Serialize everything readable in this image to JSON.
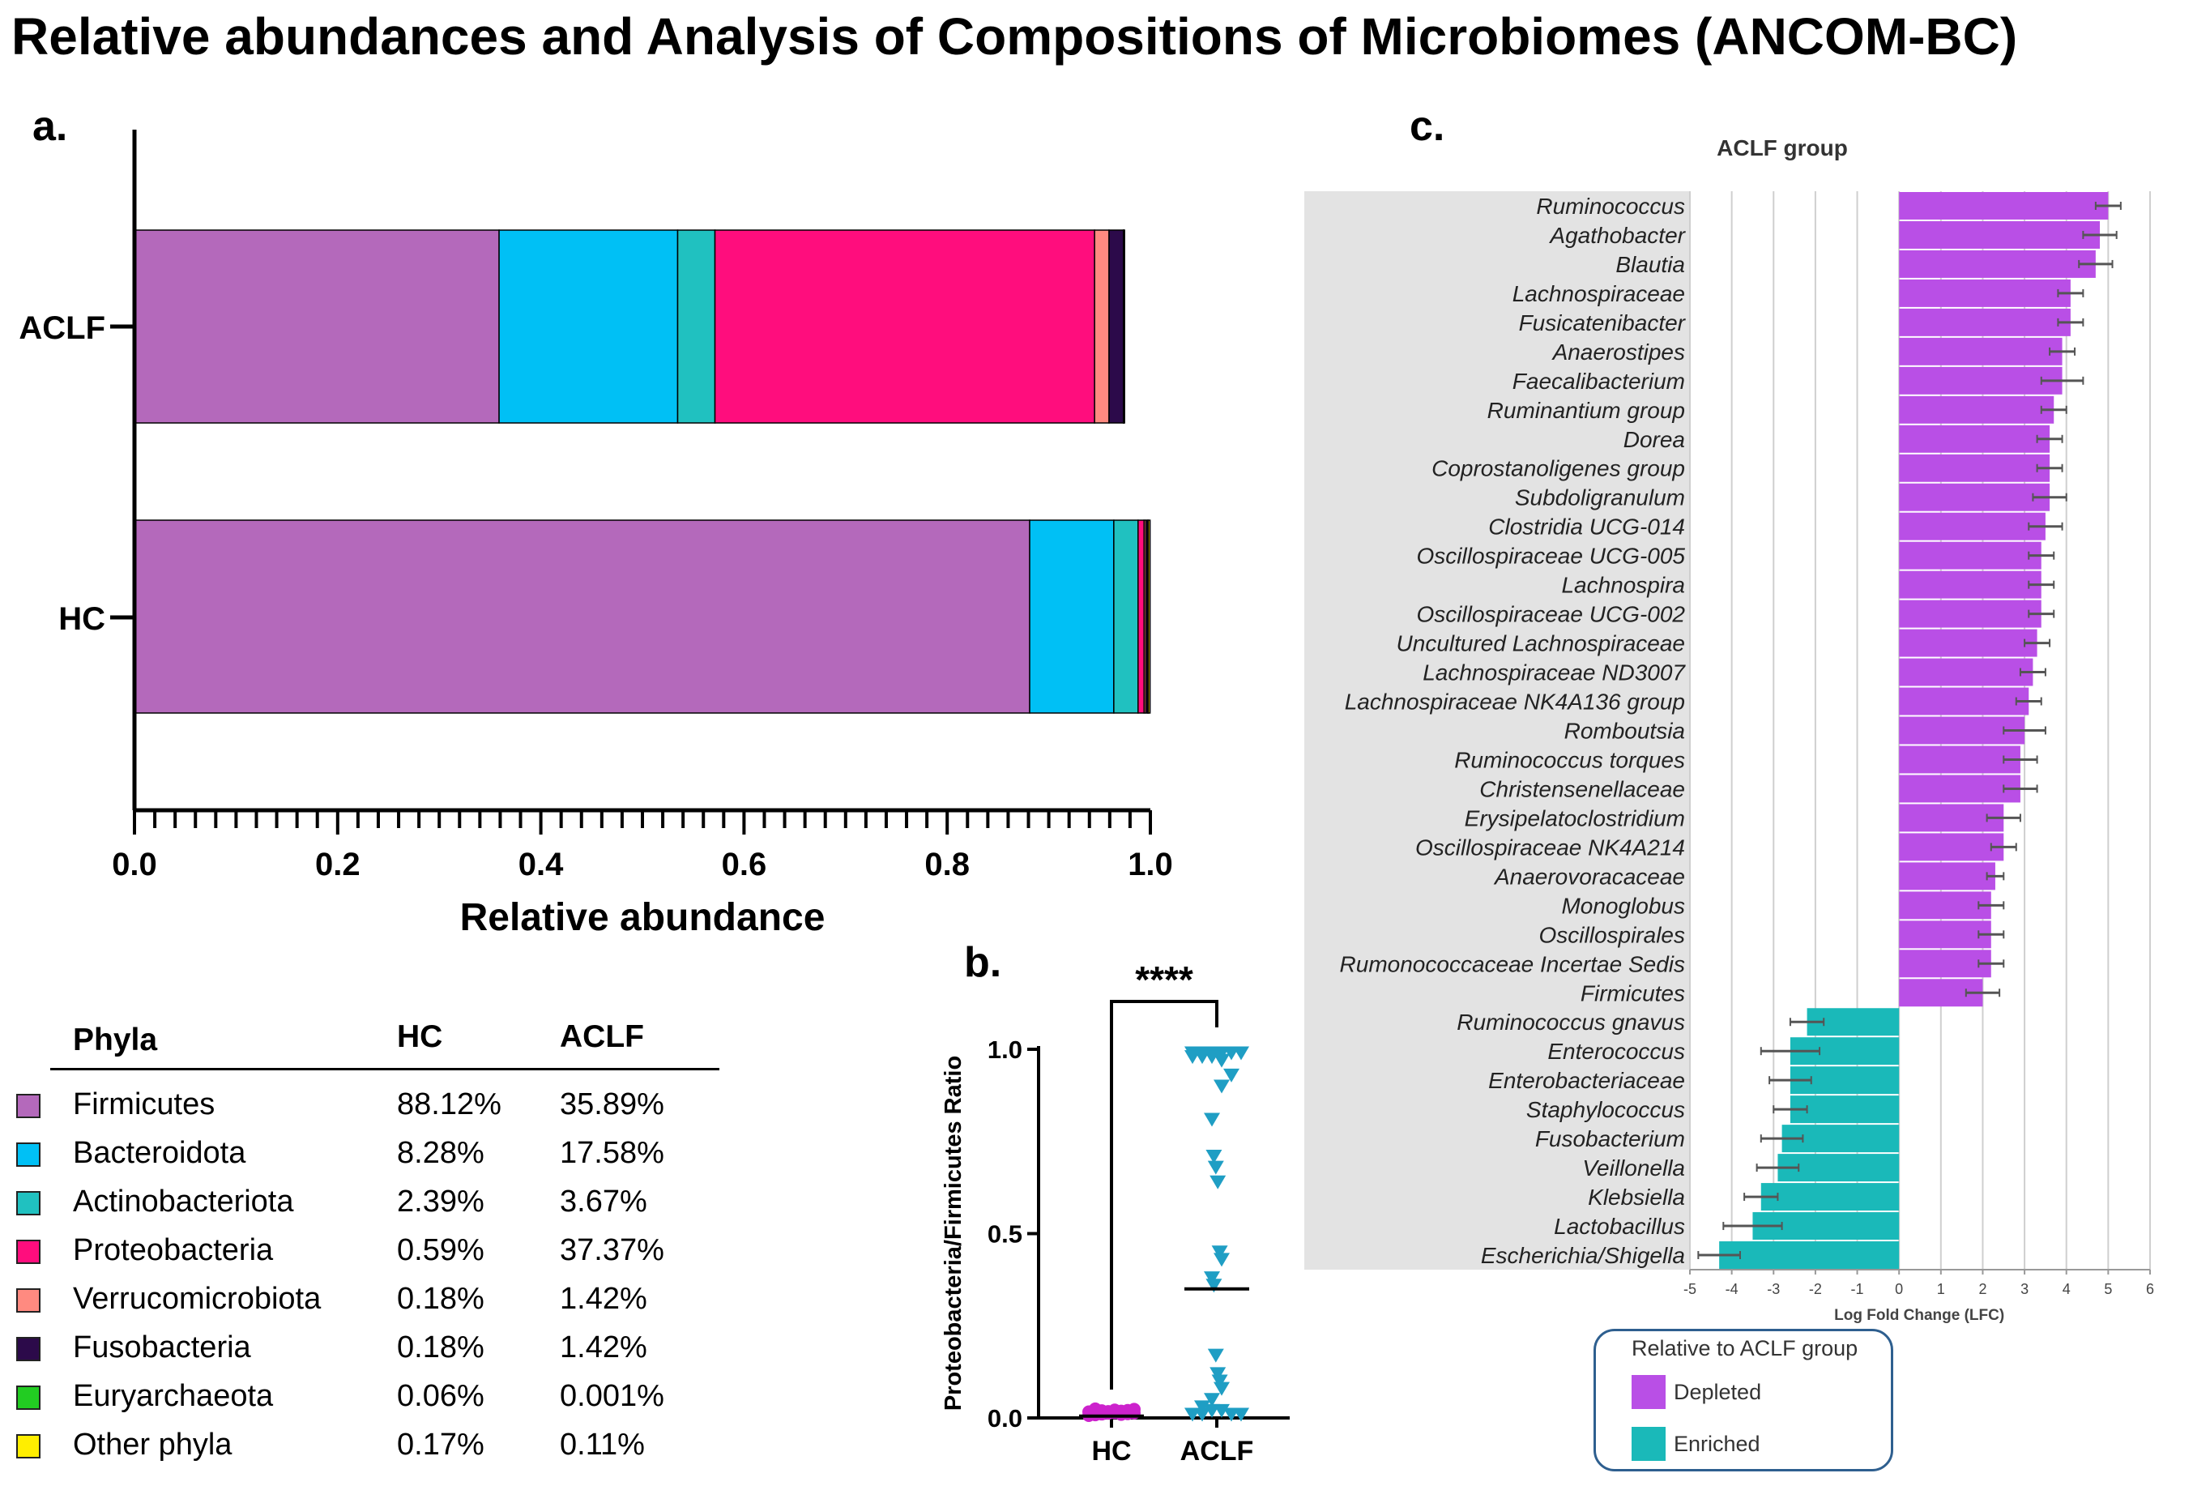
{
  "title": "Relative abundances and Analysis of Compositions of Microbiomes (ANCOM-BC)",
  "panel_labels": {
    "a": "a.",
    "b": "b.",
    "c": "c."
  },
  "colors": {
    "Firmicutes": "#b469bb",
    "Bacteroidota": "#00c0f5",
    "Actinobacteriota": "#20c1c0",
    "Proteobacteria": "#ff0d7d",
    "Verrucomicrobiota": "#ff8a80",
    "Fusobacteria": "#2c0a4a",
    "Euryarchaeota": "#22cc22",
    "Other phyla": "#ffee00",
    "depleted": "#b94fe6",
    "enriched": "#1ab9b9",
    "point_hc": "#cc22cc",
    "point_aclf": "#1f9ec4"
  },
  "legend_table": {
    "headers": [
      "Phyla",
      "HC",
      "ACLF"
    ],
    "rows": [
      {
        "name": "Firmicutes",
        "hc": "88.12%",
        "aclf": "35.89%"
      },
      {
        "name": "Bacteroidota",
        "hc": "8.28%",
        "aclf": "17.58%"
      },
      {
        "name": "Actinobacteriota",
        "hc": "2.39%",
        "aclf": "3.67%"
      },
      {
        "name": "Proteobacteria",
        "hc": "0.59%",
        "aclf": "37.37%"
      },
      {
        "name": "Verrucomicrobiota",
        "hc": "0.18%",
        "aclf": "1.42%"
      },
      {
        "name": "Fusobacteria",
        "hc": "0.18%",
        "aclf": "1.42%"
      },
      {
        "name": "Euryarchaeota",
        "hc": "0.06%",
        "aclf": "0.001%"
      },
      {
        "name": "Other phyla",
        "hc": "0.17%",
        "aclf": "0.11%"
      }
    ]
  },
  "legend_c": {
    "title": "Relative to ACLF group",
    "depleted": "Depleted",
    "enriched": "Enriched"
  },
  "chart_data": [
    {
      "type": "bar",
      "orientation": "horizontal-stacked",
      "categories": [
        "ACLF",
        "HC"
      ],
      "xlabel": "Relative abundance",
      "xlim": [
        0,
        1.0
      ],
      "xticks": [
        "0.0",
        "0.2",
        "0.4",
        "0.6",
        "0.8",
        "1.0"
      ],
      "series": [
        {
          "name": "Firmicutes",
          "values": [
            0.3589,
            0.8812
          ]
        },
        {
          "name": "Bacteroidota",
          "values": [
            0.1758,
            0.0828
          ]
        },
        {
          "name": "Actinobacteriota",
          "values": [
            0.0367,
            0.0239
          ]
        },
        {
          "name": "Proteobacteria",
          "values": [
            0.3737,
            0.0059
          ]
        },
        {
          "name": "Verrucomicrobiota",
          "values": [
            0.0142,
            0.0018
          ]
        },
        {
          "name": "Fusobacteria",
          "values": [
            0.0142,
            0.0018
          ]
        },
        {
          "name": "Euryarchaeota",
          "values": [
            1e-05,
            0.0006
          ]
        },
        {
          "name": "Other phyla",
          "values": [
            0.0011,
            0.0017
          ]
        }
      ]
    },
    {
      "type": "scatter",
      "ylabel": "Proteobacteria/Firmicutes Ratio",
      "categories": [
        "HC",
        "ACLF"
      ],
      "ylim": [
        0,
        1.0
      ],
      "yticks": [
        "0.0",
        "0.5",
        "1.0"
      ],
      "significance": "****",
      "series": [
        {
          "name": "HC",
          "marker": "circle",
          "median": 0.005,
          "values": [
            0.0,
            0.002,
            0.004,
            0.006,
            0.008,
            0.003,
            0.005,
            0.007,
            0.001,
            0.009,
            0.004,
            0.002,
            0.006,
            0.003,
            0.005,
            0.008
          ]
        },
        {
          "name": "ACLF",
          "marker": "triangle-down",
          "median": 0.35,
          "values": [
            0.99,
            0.99,
            0.99,
            0.99,
            0.99,
            0.99,
            0.98,
            0.98,
            0.98,
            0.97,
            0.93,
            0.9,
            0.81,
            0.71,
            0.68,
            0.64,
            0.45,
            0.43,
            0.38,
            0.36,
            0.17,
            0.12,
            0.1,
            0.08,
            0.05,
            0.03,
            0.02,
            0.02,
            0.01,
            0.01,
            0.01,
            0.01
          ]
        }
      ]
    },
    {
      "type": "bar",
      "orientation": "horizontal",
      "title": "ACLF group",
      "xlabel": "Log Fold Change (LFC)",
      "xlim": [
        -5,
        6
      ],
      "xticks": [
        "-5",
        "-4",
        "-3",
        "-2",
        "-1",
        "0",
        "1",
        "2",
        "3",
        "4",
        "5",
        "6"
      ],
      "categories": [
        "Ruminococcus",
        "Agathobacter",
        "Blautia",
        "Lachnospiraceae",
        "Fusicatenibacter",
        "Anaerostipes",
        "Faecalibacterium",
        "Ruminantium group",
        "Dorea",
        "Coprostanoligenes group",
        "Subdoligranulum",
        "Clostridia UCG-014",
        "Oscillospiraceae UCG-005",
        "Lachnospira",
        "Oscillospiraceae UCG-002",
        "Uncultured Lachnospiraceae",
        "Lachnospiraceae ND3007",
        "Lachnospiraceae NK4A136 group",
        "Romboutsia",
        "Ruminococcus torques",
        "Christensenellaceae",
        "Erysipelatoclostridium",
        "Oscillospiraceae NK4A214",
        "Anaerovoracaceae",
        "Monoglobus",
        "Oscillospirales",
        "Rumonococcaceae Incertae Sedis",
        "Firmicutes",
        "Ruminococcus gnavus",
        "Enterococcus",
        "Enterobacteriaceae",
        "Staphylococcus",
        "Fusobacterium",
        "Veillonella",
        "Klebsiella",
        "Lactobacillus",
        "Escherichia/Shigella"
      ],
      "values": [
        5.0,
        4.8,
        4.7,
        4.1,
        4.1,
        3.9,
        3.9,
        3.7,
        3.6,
        3.6,
        3.6,
        3.5,
        3.4,
        3.4,
        3.4,
        3.3,
        3.2,
        3.1,
        3.0,
        2.9,
        2.9,
        2.5,
        2.5,
        2.3,
        2.2,
        2.2,
        2.2,
        2.0,
        -2.2,
        -2.6,
        -2.6,
        -2.6,
        -2.8,
        -2.9,
        -3.3,
        -3.5,
        -4.3
      ],
      "errors": [
        0.3,
        0.4,
        0.4,
        0.3,
        0.3,
        0.3,
        0.5,
        0.3,
        0.3,
        0.3,
        0.4,
        0.4,
        0.3,
        0.3,
        0.3,
        0.3,
        0.3,
        0.3,
        0.5,
        0.4,
        0.4,
        0.4,
        0.3,
        0.2,
        0.3,
        0.3,
        0.3,
        0.4,
        0.4,
        0.7,
        0.5,
        0.4,
        0.5,
        0.5,
        0.4,
        0.7,
        0.5
      ],
      "legend": [
        "Depleted",
        "Enriched"
      ]
    }
  ]
}
